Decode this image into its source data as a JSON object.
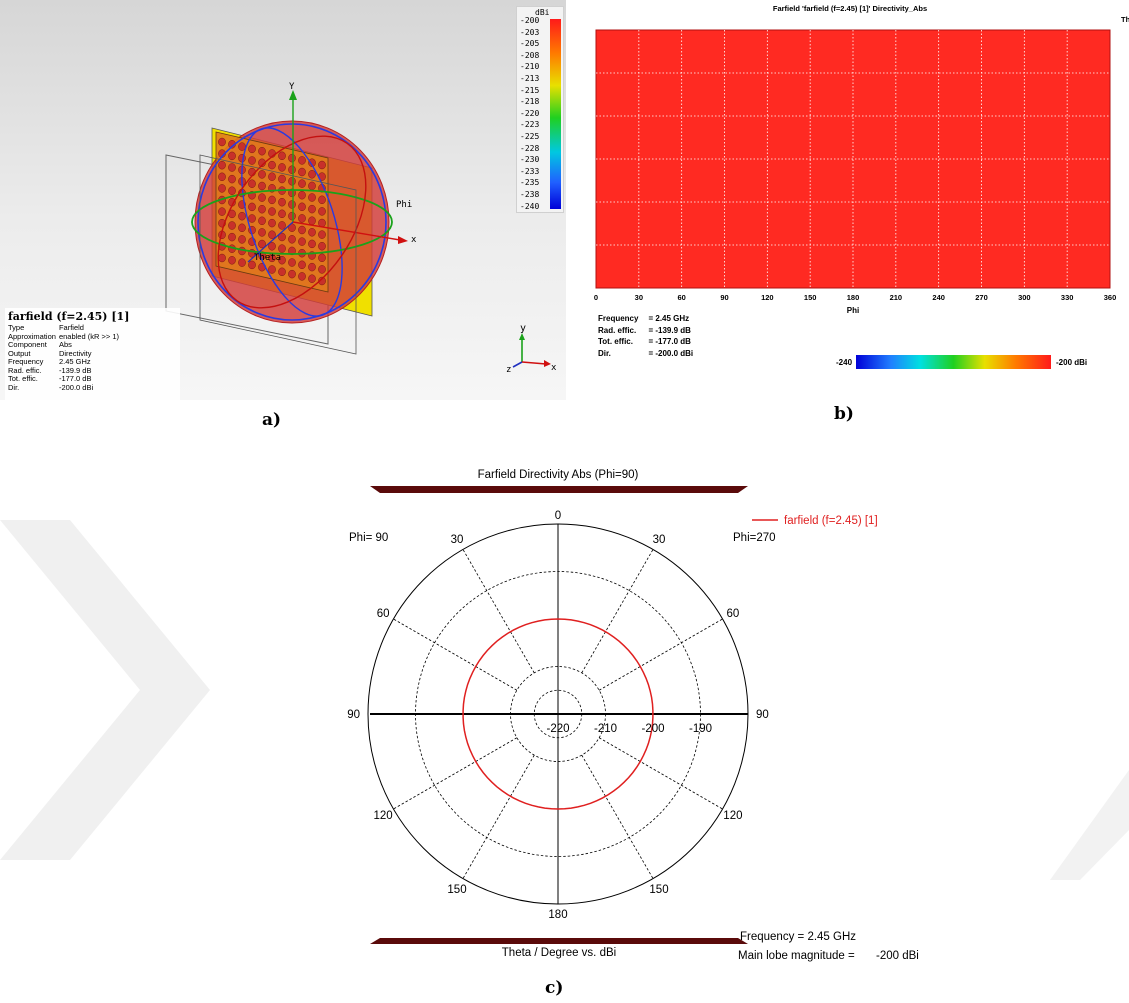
{
  "panel_a": {
    "caption": "a)",
    "colorbar": {
      "unit": "dBi",
      "ticks": [
        "-200",
        "-203",
        "-205",
        "-208",
        "-210",
        "-213",
        "-215",
        "-218",
        "-220",
        "-223",
        "-225",
        "-228",
        "-230",
        "-233",
        "-235",
        "-238",
        "-240"
      ]
    },
    "axis_labels": {
      "y": "Y",
      "x": "x",
      "phi": "Phi",
      "theta": "Theta"
    },
    "triad_labels": {
      "y": "y",
      "z": "z",
      "x": "x"
    },
    "info_title": "farfield (f=2.45) [1]",
    "info": [
      {
        "label": "Type",
        "value": "Farfield"
      },
      {
        "label": "Approximation",
        "value": "enabled (kR >> 1)"
      },
      {
        "label": "Component",
        "value": "Abs"
      },
      {
        "label": "Output",
        "value": "Directivity"
      },
      {
        "label": "Frequency",
        "value": "2.45 GHz"
      },
      {
        "label": "Rad. effic.",
        "value": "-139.9 dB"
      },
      {
        "label": "Tot. effic.",
        "value": "-177.0 dB"
      },
      {
        "label": "Dir.",
        "value": "-200.0 dBi"
      }
    ]
  },
  "panel_b": {
    "caption": "b)",
    "title": "Farfield 'farfield (f=2.45) [1]' Directivity_Abs",
    "corner_label": "Th",
    "info": [
      {
        "label": "Frequency",
        "value": "= 2.45 GHz"
      },
      {
        "label": "Rad. effic.",
        "value": "= -139.9 dB"
      },
      {
        "label": "Tot. effic.",
        "value": "= -177.0 dB"
      },
      {
        "label": "Dir.",
        "value": "= -200.0 dBi"
      }
    ],
    "colorbar": {
      "min_label": "-240",
      "max_label": "-200 dBi"
    }
  },
  "panel_c": {
    "caption": "c)",
    "footer": {
      "frequency": "Frequency = 2.45 GHz",
      "main_lobe": "Main lobe magnitude =",
      "main_lobe_value": "-200 dBi"
    }
  },
  "chart_data": [
    {
      "type": "heatmap",
      "title": "Farfield 'farfield (f=2.45) [1]' Directivity_Abs",
      "xlabel": "Phi",
      "xlim": [
        0,
        360
      ],
      "xticks": [
        0,
        30,
        60,
        90,
        120,
        150,
        180,
        210,
        240,
        270,
        300,
        330,
        360
      ],
      "values_uniform": -200,
      "color_range": [
        -240,
        -200
      ],
      "unit": "dBi",
      "colors": {
        "fill": "#ff2a22",
        "grid": "#ffffff"
      }
    },
    {
      "type": "line",
      "title": "Farfield Directivity Abs (Phi=90)",
      "xlabel": "Theta / Degree vs. dBi",
      "radial_ticks": [
        -220,
        -210,
        -200,
        -190
      ],
      "radial_range": [
        -220,
        -180
      ],
      "angle_labels": {
        "top": "0",
        "bottom": "180",
        "left": "90",
        "right": "90",
        "left_upper": [
          "30",
          "60"
        ],
        "left_lower": [
          "120",
          "150"
        ],
        "right_upper": [
          "30",
          "60"
        ],
        "right_lower": [
          "120",
          "150"
        ]
      },
      "phi_left_label": "Phi= 90",
      "phi_right_label": "Phi=270",
      "series": [
        {
          "name": "farfield (f=2.45) [1]",
          "color": "#e02020",
          "constant_value": -200
        }
      ]
    }
  ]
}
